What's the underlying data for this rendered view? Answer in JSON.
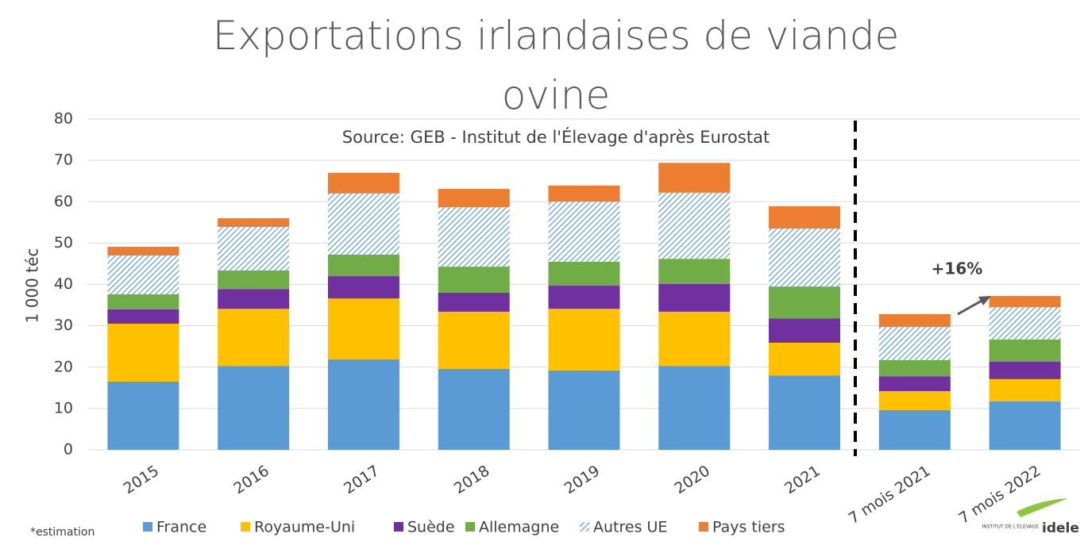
{
  "chart_data": {
    "type": "stacked-bar",
    "title": "Exportations irlandaises de viande ovine",
    "subtitle": "Source: GEB - Institut de l'Élevage d'après Eurostat",
    "y_label": "1 000 téc",
    "annotation": "+16%",
    "note": "*estimation",
    "categories": [
      "2015",
      "2016",
      "2017",
      "2018",
      "2019",
      "2020",
      "2021",
      "7 mois 2021",
      "7 mois 2022"
    ],
    "series": [
      {
        "name": "France",
        "color": "#5b9bd5",
        "values": [
          16.5,
          20.3,
          21.9,
          19.6,
          19.2,
          20.3,
          18.0,
          9.6,
          11.7
        ]
      },
      {
        "name": "Royaume-Uni",
        "color": "#ffc000",
        "values": [
          14.0,
          13.8,
          14.7,
          13.8,
          14.9,
          13.1,
          7.9,
          4.6,
          5.4
        ]
      },
      {
        "name": "Suède",
        "color": "#7030a0",
        "values": [
          3.5,
          4.8,
          5.4,
          4.6,
          5.6,
          6.7,
          5.9,
          3.6,
          4.2
        ]
      },
      {
        "name": "Allemagne",
        "color": "#70ad47",
        "values": [
          3.6,
          4.5,
          5.2,
          6.3,
          5.8,
          6.1,
          7.7,
          3.9,
          5.4
        ]
      },
      {
        "name": "Autres UE",
        "color": "#5b9bd5",
        "hatch": true,
        "values": [
          9.4,
          10.5,
          14.8,
          14.4,
          14.5,
          16.0,
          14.0,
          8.0,
          7.8
        ]
      },
      {
        "name": "Pays tiers",
        "color": "#ed7d31",
        "values": [
          2.1,
          2.1,
          5.0,
          4.4,
          3.9,
          7.2,
          5.4,
          3.1,
          2.7
        ]
      }
    ],
    "ylim": [
      0,
      80
    ],
    "yticks": [
      0,
      10,
      20,
      30,
      40,
      50,
      60,
      70,
      80
    ],
    "grid": true
  },
  "logo": {
    "small": "INSTITUT DE L'ÉLEVAGE",
    "name": "idele"
  }
}
